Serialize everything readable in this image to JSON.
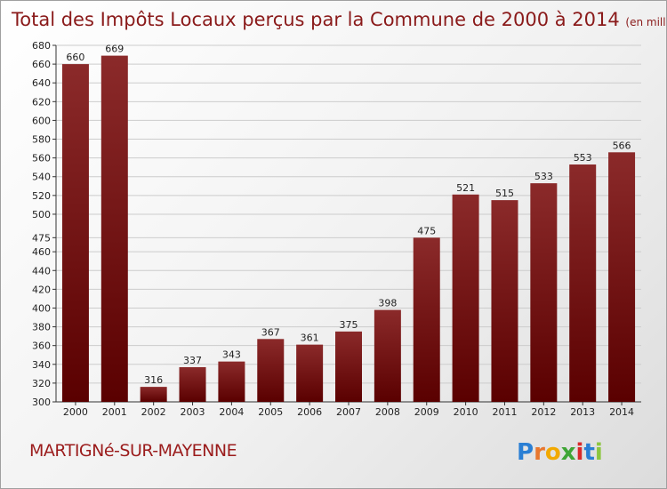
{
  "title": "Total des Impôts Locaux perçus par la Commune de 2000 à 2014",
  "subtitle": "(en milliers d'€)",
  "commune": "MARTIGNé-SUR-MAYENNE",
  "logo": {
    "text": "Proxiti",
    "letters": [
      "P",
      "r",
      "o",
      "x",
      "i",
      "t",
      "i"
    ],
    "colors": [
      "#2a7fd4",
      "#e8772e",
      "#f2a900",
      "#3fa535",
      "#d92a2a",
      "#2a7fd4",
      "#8cc63f"
    ]
  },
  "colors": {
    "bar_top": "#8b2a2a",
    "bar_bottom": "#5a0000",
    "title": "#8a1a1a",
    "grid": "#cccccc"
  },
  "chart_data": {
    "type": "bar",
    "title": "Total des Impôts Locaux perçus par la Commune de 2000 à 2014",
    "subtitle": "(en milliers d'€)",
    "categories": [
      "2000",
      "2001",
      "2002",
      "2003",
      "2004",
      "2005",
      "2006",
      "2007",
      "2008",
      "2009",
      "2010",
      "2011",
      "2012",
      "2013",
      "2014"
    ],
    "values": [
      660,
      669,
      316,
      337,
      343,
      367,
      361,
      375,
      398,
      475,
      521,
      515,
      533,
      553,
      566
    ],
    "ylim": [
      300,
      680
    ],
    "yticks": [
      300,
      320,
      340,
      360,
      380,
      400,
      420,
      440,
      460,
      475,
      500,
      520,
      540,
      560,
      580,
      600,
      620,
      640,
      660,
      680
    ],
    "grid": true,
    "xlabel": "",
    "ylabel": ""
  }
}
